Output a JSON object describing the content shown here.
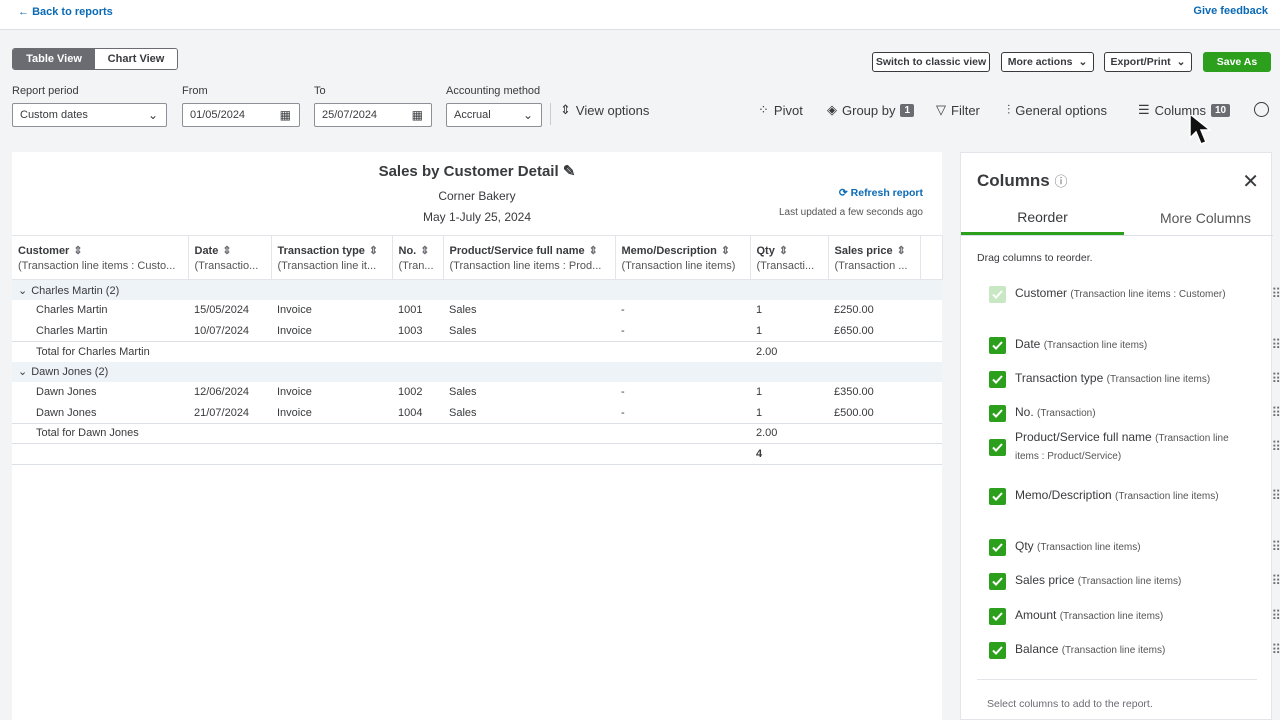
{
  "topbar": {
    "back": "Back to reports",
    "feedback": "Give feedback"
  },
  "view_tabs": [
    "Table View",
    "Chart View"
  ],
  "actions": [
    "Switch to classic view",
    "More actions",
    "Export/Print",
    "Save As"
  ],
  "filters": [
    {
      "label": "Report period",
      "value": "Custom dates"
    },
    {
      "label": "From",
      "value": "01/05/2024"
    },
    {
      "label": "To",
      "value": "25/07/2024"
    },
    {
      "label": "Accounting method",
      "value": "Accrual"
    }
  ],
  "view_options": "View options",
  "toolbar": [
    {
      "label": "Pivot"
    },
    {
      "label": "Group by",
      "badge": "1"
    },
    {
      "label": "Filter"
    },
    {
      "label": "General options"
    },
    {
      "label": "Columns",
      "badge": "10"
    }
  ],
  "report": {
    "title": "Sales by Customer Detail",
    "company": "Corner Bakery",
    "dates": "May 1-July 25, 2024",
    "refresh": "Refresh report",
    "updated": "Last updated a few seconds ago",
    "columns": [
      {
        "name": "Customer",
        "sub": "(Transaction line items : Custo..."
      },
      {
        "name": "Date",
        "sub": "(Transactio..."
      },
      {
        "name": "Transaction type",
        "sub": "(Transaction line it..."
      },
      {
        "name": "No.",
        "sub": "(Tran..."
      },
      {
        "name": "Product/Service full name",
        "sub": "(Transaction line items : Prod..."
      },
      {
        "name": "Memo/Description",
        "sub": "(Transaction line items)"
      },
      {
        "name": "Qty",
        "sub": "(Transacti..."
      },
      {
        "name": "Sales price",
        "sub": "(Transaction ..."
      }
    ],
    "groups": [
      {
        "name": "Charles Martin (2)",
        "rows": [
          [
            "Charles Martin",
            "15/05/2024",
            "Invoice",
            "1001",
            "Sales",
            "-",
            "1",
            "£250.00"
          ],
          [
            "Charles Martin",
            "10/07/2024",
            "Invoice",
            "1003",
            "Sales",
            "-",
            "1",
            "£650.00"
          ]
        ],
        "total_label": "Total for Charles Martin",
        "total_qty": "2.00"
      },
      {
        "name": "Dawn Jones (2)",
        "rows": [
          [
            "Dawn Jones",
            "12/06/2024",
            "Invoice",
            "1002",
            "Sales",
            "-",
            "1",
            "£350.00"
          ],
          [
            "Dawn Jones",
            "21/07/2024",
            "Invoice",
            "1004",
            "Sales",
            "-",
            "1",
            "£500.00"
          ]
        ],
        "total_label": "Total for Dawn Jones",
        "total_qty": "2.00"
      }
    ],
    "grand_total": "4"
  },
  "panel": {
    "title": "Columns",
    "tabs": [
      "Reorder",
      "More Columns"
    ],
    "hint": "Drag columns to reorder.",
    "items": [
      {
        "name": "Customer",
        "sub": "(Transaction line items : Customer)",
        "disabled": true
      },
      {
        "name": "Date",
        "sub": "(Transaction line items)"
      },
      {
        "name": "Transaction type",
        "sub": "(Transaction line items)"
      },
      {
        "name": "No.",
        "sub": "(Transaction)"
      },
      {
        "name": "Product/Service full name",
        "sub": "(Transaction line items : Product/Service)"
      },
      {
        "name": "Memo/Description",
        "sub": "(Transaction line items)"
      },
      {
        "name": "Qty",
        "sub": "(Transaction line items)"
      },
      {
        "name": "Sales price",
        "sub": "(Transaction line items)"
      },
      {
        "name": "Amount",
        "sub": "(Transaction line items)"
      },
      {
        "name": "Balance",
        "sub": "(Transaction line items)"
      }
    ],
    "footer": "Select columns to add to the report."
  }
}
